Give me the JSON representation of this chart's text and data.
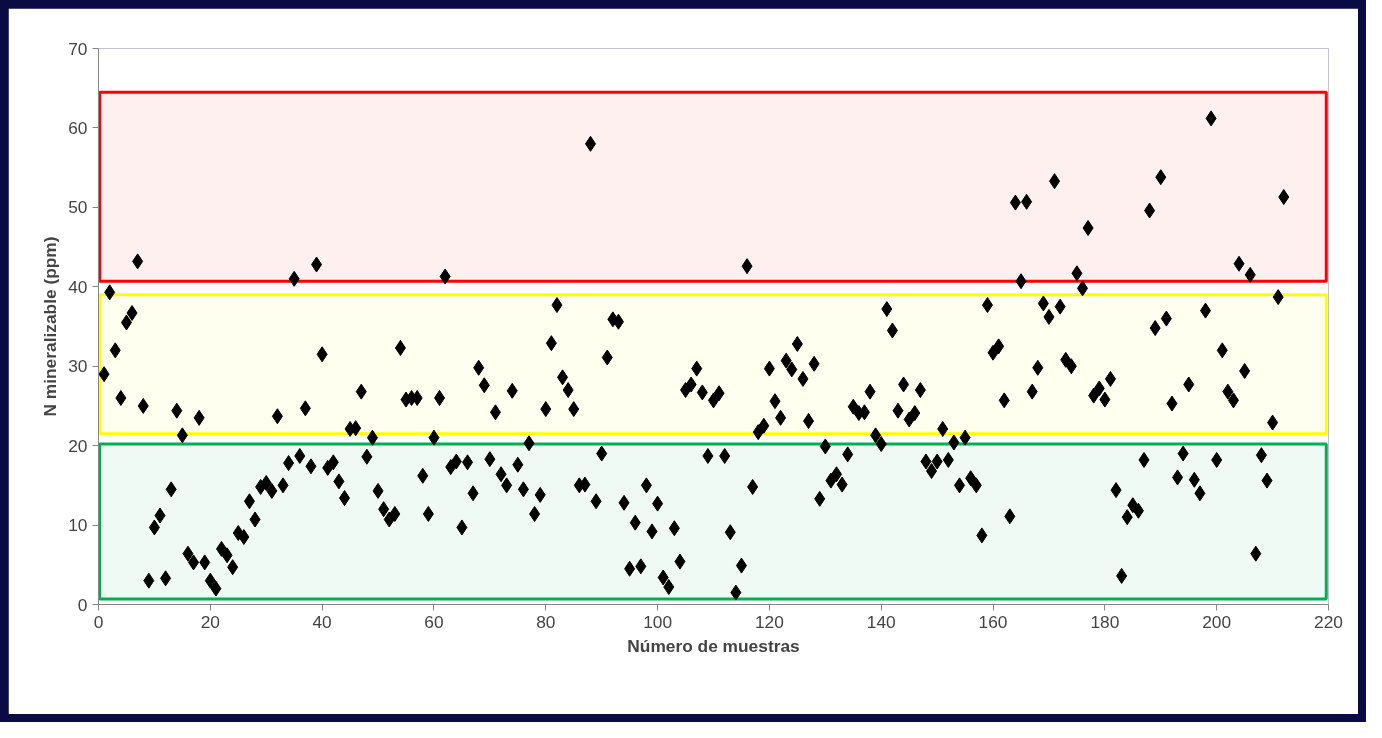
{
  "chart_data": {
    "type": "scatter",
    "xlabel": "Número de muestras",
    "ylabel": "N mineralizable (ppm)",
    "x": [
      1,
      2,
      3,
      4,
      5,
      6,
      7,
      8,
      9,
      10,
      11,
      12,
      13,
      14,
      15,
      16,
      17,
      18,
      19,
      20,
      21,
      22,
      23,
      24,
      25,
      26,
      27,
      28,
      29,
      30,
      31,
      32,
      33,
      34,
      35,
      36,
      37,
      38,
      39,
      40,
      41,
      42,
      43,
      44,
      45,
      46,
      47,
      48,
      49,
      50,
      51,
      52,
      53,
      54,
      55,
      56,
      57,
      58,
      59,
      60,
      61,
      62,
      63,
      64,
      65,
      66,
      67,
      68,
      69,
      70,
      71,
      72,
      73,
      74,
      75,
      76,
      77,
      78,
      79,
      80,
      81,
      82,
      83,
      84,
      85,
      86,
      87,
      88,
      89,
      90,
      91,
      92,
      93,
      94,
      95,
      96,
      97,
      98,
      99,
      100,
      101,
      102,
      103,
      104,
      105,
      106,
      107,
      108,
      109,
      110,
      111,
      112,
      113,
      114,
      115,
      116,
      117,
      118,
      119,
      120,
      121,
      122,
      123,
      124,
      125,
      126,
      127,
      128,
      129,
      130,
      131,
      132,
      133,
      134,
      135,
      136,
      137,
      138,
      139,
      140,
      141,
      142,
      143,
      144,
      145,
      146,
      147,
      148,
      149,
      150,
      151,
      152,
      153,
      154,
      155,
      156,
      157,
      158,
      159,
      160,
      161,
      162,
      163,
      164,
      165,
      166,
      167,
      168,
      169,
      170,
      171,
      172,
      173,
      174,
      175,
      176,
      177,
      178,
      179,
      180,
      181,
      182,
      183,
      184,
      185,
      186,
      187,
      188,
      189,
      190,
      191,
      192,
      193,
      194,
      195,
      196,
      197,
      198,
      199,
      200,
      201,
      202,
      203,
      204,
      205,
      206,
      207,
      208,
      209,
      210,
      211,
      212
    ],
    "series": [
      {
        "color": "#000000",
        "values": [
          29,
          39.3,
          32,
          26,
          35.5,
          36.7,
          43.2,
          25,
          3,
          9.7,
          11.2,
          3.3,
          14.5,
          24.4,
          21.3,
          6.4,
          5.3,
          23.5,
          5.3,
          3,
          2,
          7,
          6.2,
          4.7,
          9,
          8.5,
          13,
          10.7,
          14.8,
          15.3,
          14.3,
          23.7,
          15,
          17.8,
          41,
          18.7,
          24.7,
          17.4,
          42.8,
          31.5,
          17.2,
          17.9,
          15.5,
          13.4,
          22.1,
          22.2,
          26.8,
          18.6,
          21,
          14.3,
          12,
          10.7,
          11.4,
          32.3,
          25.8,
          26,
          26,
          16.2,
          11.4,
          21,
          26,
          41.3,
          17.3,
          18,
          9.7,
          17.9,
          14,
          29.8,
          27.6,
          18.3,
          24.2,
          16.4,
          15,
          26.9,
          17.6,
          14.5,
          20.3,
          11.4,
          13.8,
          24.6,
          32.9,
          37.7,
          28.6,
          27,
          24.6,
          15,
          15.1,
          58,
          13,
          19,
          31.1,
          35.9,
          35.6,
          12.8,
          4.5,
          10.3,
          4.8,
          15,
          9.2,
          12.7,
          3.4,
          2.2,
          9.6,
          5.4,
          27,
          27.7,
          29.7,
          26.7,
          18.7,
          25.7,
          26.6,
          18.7,
          9.1,
          1.5,
          4.9,
          42.6,
          14.8,
          21.7,
          22.5,
          29.7,
          25.6,
          23.5,
          30.7,
          29.6,
          32.8,
          28.4,
          23.1,
          30.3,
          13.3,
          19.9,
          15.6,
          16.4,
          15.1,
          18.9,
          24.9,
          24.1,
          24.2,
          26.8,
          21.3,
          20.2,
          37.2,
          34.5,
          24.4,
          27.7,
          23.3,
          24.1,
          27,
          18,
          16.8,
          18,
          22.1,
          18.2,
          20.4,
          15,
          21,
          15.9,
          15,
          8.7,
          37.7,
          31.7,
          32.5,
          25.7,
          11.1,
          50.6,
          40.7,
          50.7,
          26.8,
          29.8,
          37.9,
          36.2,
          53.3,
          37.5,
          30.8,
          30,
          41.7,
          39.8,
          47.4,
          26.3,
          27.2,
          25.8,
          28.4,
          14.4,
          3.6,
          11,
          12.5,
          11.8,
          18.2,
          49.6,
          34.8,
          53.8,
          36,
          25.3,
          16,
          19,
          27.7,
          15.7,
          14,
          37,
          61.2,
          18.2,
          32,
          26.8,
          25.7,
          42.9,
          29.4,
          41.5,
          6.4,
          18.8,
          15.6,
          22.9,
          38.7,
          51.3
        ]
      }
    ],
    "xlim": [
      0,
      220
    ],
    "xticks": [
      0,
      20,
      40,
      60,
      80,
      100,
      120,
      140,
      160,
      180,
      200,
      220
    ],
    "ylim": [
      0,
      70
    ],
    "yticks": [
      0,
      10,
      20,
      30,
      40,
      50,
      60,
      70
    ],
    "bands": [
      {
        "axis": "y",
        "from": 40.7,
        "to": 64.5,
        "color": "#ff0000"
      },
      {
        "axis": "y",
        "from": 21.5,
        "to": 39,
        "color": "#ffff00"
      },
      {
        "axis": "y",
        "from": 0.7,
        "to": 20.2,
        "color": "#00b050"
      }
    ],
    "marker": "diamond",
    "grid": false
  }
}
